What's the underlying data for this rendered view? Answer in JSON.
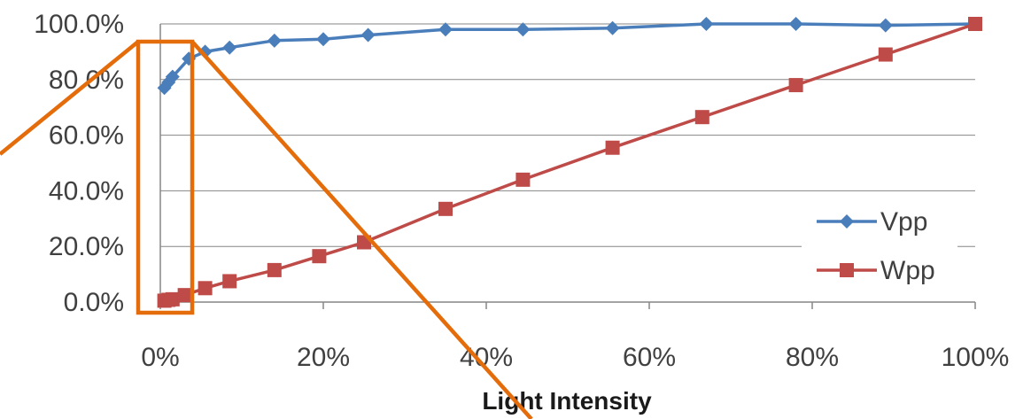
{
  "chart_data": {
    "type": "line",
    "xlabel": "Light Intensity",
    "ylabel": "",
    "xlim": [
      0,
      100
    ],
    "ylim": [
      0,
      100
    ],
    "x_ticks": [
      "0%",
      "20%",
      "40%",
      "60%",
      "80%",
      "100%"
    ],
    "y_ticks": [
      "0.0%",
      "20.0%",
      "40.0%",
      "60.0%",
      "80.0%",
      "100.0%"
    ],
    "grid": "horizontal",
    "legend_position": "bottom-right",
    "series": [
      {
        "name": "Vpp",
        "color": "#4a7ebb",
        "marker": "diamond",
        "x": [
          0.5,
          1,
          1.5,
          3.5,
          5.5,
          8.5,
          14,
          20,
          25.5,
          35,
          44.5,
          55.5,
          67,
          78,
          89,
          100
        ],
        "y": [
          77,
          79,
          81,
          87.5,
          90,
          91.5,
          94,
          94.5,
          96,
          98,
          98,
          98.5,
          100,
          100,
          99.5,
          100
        ]
      },
      {
        "name": "Wpp",
        "color": "#be4b48",
        "marker": "square",
        "x": [
          0.5,
          1,
          1.5,
          3,
          5.5,
          8.5,
          14,
          19.5,
          25,
          35,
          44.5,
          55.5,
          66.5,
          78,
          89,
          100
        ],
        "y": [
          0.5,
          0.8,
          1,
          2.5,
          5,
          7.5,
          11.5,
          16.5,
          21.5,
          33.5,
          44,
          55.5,
          66.5,
          78,
          89,
          100
        ]
      }
    ]
  },
  "colors": {
    "annotation": "#e46c0a",
    "grid": "#868686",
    "axis": "#868686"
  }
}
